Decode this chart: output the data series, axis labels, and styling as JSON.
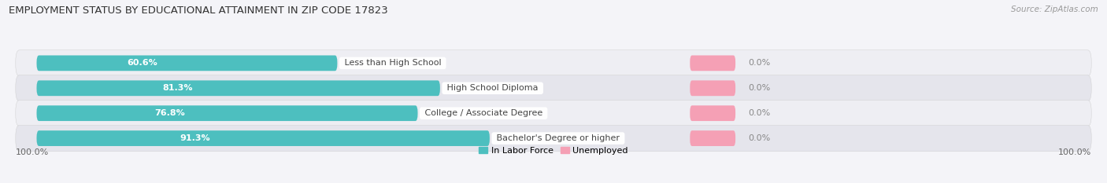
{
  "title": "EMPLOYMENT STATUS BY EDUCATIONAL ATTAINMENT IN ZIP CODE 17823",
  "source": "Source: ZipAtlas.com",
  "categories": [
    "Less than High School",
    "High School Diploma",
    "College / Associate Degree",
    "Bachelor's Degree or higher"
  ],
  "labor_force": [
    60.6,
    81.3,
    76.8,
    91.3
  ],
  "unemployed": [
    0.0,
    0.0,
    0.0,
    0.0
  ],
  "labor_force_color": "#4DBFBF",
  "unemployed_color": "#F5A0B5",
  "row_bg_light": "#EEEEF3",
  "row_bg_dark": "#E5E5EC",
  "text_color_pct_white": "#FFFFFF",
  "text_color_outside": "#888888",
  "text_color_label": "#444444",
  "x_left_label": "100.0%",
  "x_right_label": "100.0%",
  "legend_labor": "In Labor Force",
  "legend_unemployed": "Unemployed",
  "max_value": 100,
  "unemployed_bar_width": 5.5,
  "figsize": [
    14.06,
    2.33
  ],
  "dpi": 100
}
